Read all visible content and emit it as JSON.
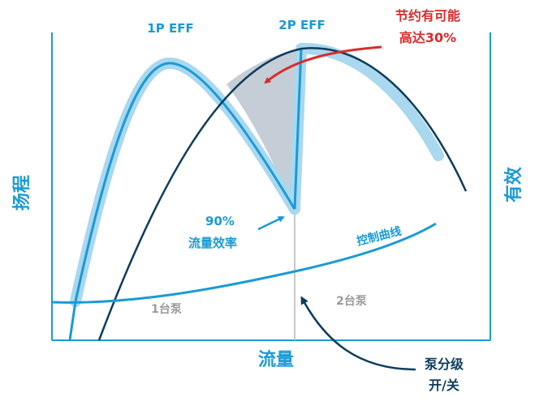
{
  "labels": {
    "one_pump_eff": "1P EFF",
    "two_pump_eff": "2P EFF",
    "savings_line1": "节约有可能",
    "savings_line2": "高达30%",
    "y_axis_left": "扬程",
    "y_axis_right": "有效",
    "x_axis": "流量",
    "flow_eff_line1": "90%",
    "flow_eff_line2": "流量效率",
    "control_curve": "控制曲线",
    "one_pump": "1台泵",
    "two_pump": "2台泵",
    "staging_line1": "泵分级",
    "staging_line2": "开/关"
  },
  "colors": {
    "efficiency_blue": "#1a9ad6",
    "efficiency_halo": "#a9d8ef",
    "system_curve_navy": "#0d3c5c",
    "savings_red": "#d92b2b",
    "savings_fill": "#c5cdd6",
    "staging_divider": "#c8c8c8",
    "axis_frame": "#1a9ad6",
    "pump_count_grey": "#9a9a9a"
  }
}
